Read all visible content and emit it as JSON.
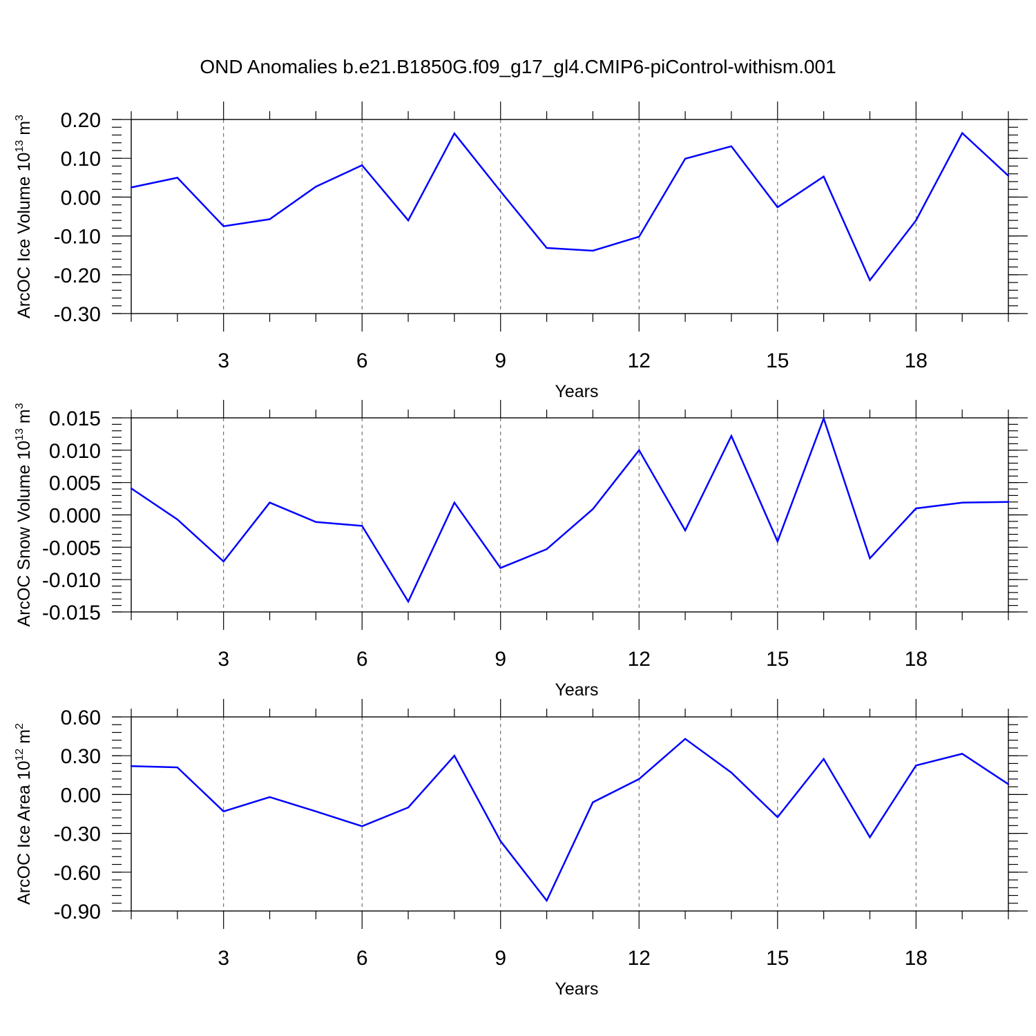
{
  "title": "OND Anomalies b.e21.B1850G.f09_g17_gl4.CMIP6-piControl-withism.001",
  "colors": {
    "line": "#0000ff",
    "axis": "#000000",
    "grid": "#555555"
  },
  "chart_data": [
    {
      "type": "line",
      "ylabel": "ArcOC Ice Volume 10",
      "ylabel_exp": "13",
      "ylabel_unit": " m",
      "ylabel_unit_exp": "3",
      "xlabel": "Years",
      "xlim": [
        1,
        20
      ],
      "ylim": [
        -0.3,
        0.2
      ],
      "xticks": [
        3,
        6,
        9,
        12,
        15,
        18
      ],
      "yticks": [
        -0.3,
        -0.2,
        -0.1,
        0.0,
        0.1,
        0.2
      ],
      "ytick_labels": [
        "-0.30",
        "-0.20",
        "-0.10",
        "0.00",
        "0.10",
        "0.20"
      ],
      "yminor_step": 0.02,
      "x": [
        1,
        2,
        3,
        4,
        5,
        6,
        7,
        8,
        9,
        10,
        11,
        12,
        13,
        14,
        15,
        16,
        17,
        18,
        19,
        20
      ],
      "series": [
        {
          "values": [
            0.025,
            0.05,
            -0.075,
            -0.057,
            0.027,
            0.082,
            -0.06,
            0.164,
            0.015,
            -0.131,
            -0.138,
            -0.102,
            0.099,
            0.131,
            -0.026,
            0.053,
            -0.214,
            -0.06,
            0.165,
            0.055
          ]
        }
      ]
    },
    {
      "type": "line",
      "ylabel": "ArcOC Snow Volume 10",
      "ylabel_exp": "13",
      "ylabel_unit": " m",
      "ylabel_unit_exp": "3",
      "xlabel": "Years",
      "xlim": [
        1,
        20
      ],
      "ylim": [
        -0.015,
        0.015
      ],
      "xticks": [
        3,
        6,
        9,
        12,
        15,
        18
      ],
      "yticks": [
        -0.015,
        -0.01,
        -0.005,
        0.0,
        0.005,
        0.01,
        0.015
      ],
      "ytick_labels": [
        "-0.015",
        "-0.010",
        "-0.005",
        "0.000",
        "0.005",
        "0.010",
        "0.015"
      ],
      "yminor_step": 0.001,
      "x": [
        1,
        2,
        3,
        4,
        5,
        6,
        7,
        8,
        9,
        10,
        11,
        12,
        13,
        14,
        15,
        16,
        17,
        18,
        19,
        20
      ],
      "series": [
        {
          "values": [
            0.0041,
            -0.0007,
            -0.0072,
            0.0019,
            -0.0011,
            -0.0017,
            -0.0134,
            0.0019,
            -0.0082,
            -0.0053,
            0.0009,
            0.01,
            -0.0024,
            0.0122,
            -0.0041,
            0.0149,
            -0.0067,
            0.001,
            0.0019,
            0.002
          ]
        }
      ]
    },
    {
      "type": "line",
      "ylabel": "ArcOC Ice Area 10",
      "ylabel_exp": "12",
      "ylabel_unit": " m",
      "ylabel_unit_exp": "2",
      "xlabel": "Years",
      "xlim": [
        1,
        20
      ],
      "ylim": [
        -0.9,
        0.6
      ],
      "xticks": [
        3,
        6,
        9,
        12,
        15,
        18
      ],
      "yticks": [
        -0.9,
        -0.6,
        -0.3,
        0.0,
        0.3,
        0.6
      ],
      "ytick_labels": [
        "-0.90",
        "-0.60",
        "-0.30",
        "0.00",
        "0.30",
        "0.60"
      ],
      "yminor_step": 0.06,
      "x": [
        1,
        2,
        3,
        4,
        5,
        6,
        7,
        8,
        9,
        10,
        11,
        12,
        13,
        14,
        15,
        16,
        17,
        18,
        19,
        20
      ],
      "series": [
        {
          "values": [
            0.22,
            0.21,
            -0.13,
            -0.02,
            -0.13,
            -0.245,
            -0.1,
            0.3,
            -0.36,
            -0.82,
            -0.06,
            0.12,
            0.43,
            0.17,
            -0.175,
            0.275,
            -0.33,
            0.225,
            0.315,
            0.08
          ]
        }
      ]
    }
  ]
}
